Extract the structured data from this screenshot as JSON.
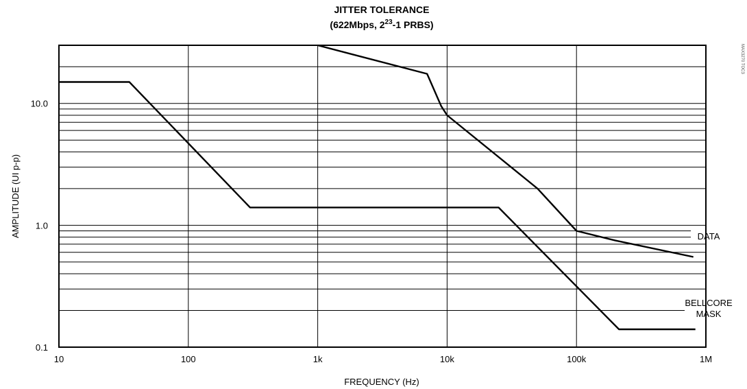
{
  "chart_data": {
    "type": "line",
    "title": "JITTER TOLERANCE",
    "subtitle_parts": {
      "prefix": "(622Mbps, 2",
      "superscript": "23",
      "suffix": "-1 PRBS)"
    },
    "xlabel": "FREQUENCY (Hz)",
    "ylabel": "AMPLITUDE (UI p-p)",
    "x_scale": "log",
    "y_scale": "log",
    "xlim": [
      10,
      1000000
    ],
    "ylim": [
      0.1,
      30
    ],
    "x_ticks": [
      {
        "value": 10,
        "label": "10"
      },
      {
        "value": 100,
        "label": "100"
      },
      {
        "value": 1000,
        "label": "1k"
      },
      {
        "value": 10000,
        "label": "10k"
      },
      {
        "value": 100000,
        "label": "100k"
      },
      {
        "value": 1000000,
        "label": "1M"
      }
    ],
    "y_ticks": [
      {
        "value": 0.1,
        "label": "0.1"
      },
      {
        "value": 1,
        "label": "1.0"
      },
      {
        "value": 10,
        "label": "10.0"
      }
    ],
    "grid": true,
    "series": [
      {
        "name": "DATA",
        "points": [
          {
            "x": 1000,
            "y": 30
          },
          {
            "x": 7000,
            "y": 17.5
          },
          {
            "x": 9000,
            "y": 9.5
          },
          {
            "x": 10000,
            "y": 8
          },
          {
            "x": 50000,
            "y": 2
          },
          {
            "x": 100000,
            "y": 0.9
          },
          {
            "x": 200000,
            "y": 0.75
          },
          {
            "x": 800000,
            "y": 0.55
          }
        ]
      },
      {
        "name_lines": [
          "BELLCORE",
          "MASK"
        ],
        "points": [
          {
            "x": 10,
            "y": 15
          },
          {
            "x": 35,
            "y": 15
          },
          {
            "x": 300,
            "y": 1.4
          },
          {
            "x": 25000,
            "y": 1.4
          },
          {
            "x": 213000,
            "y": 0.14
          },
          {
            "x": 830000,
            "y": 0.14
          }
        ]
      }
    ],
    "figure_code": "MAX3270 TOC3"
  }
}
